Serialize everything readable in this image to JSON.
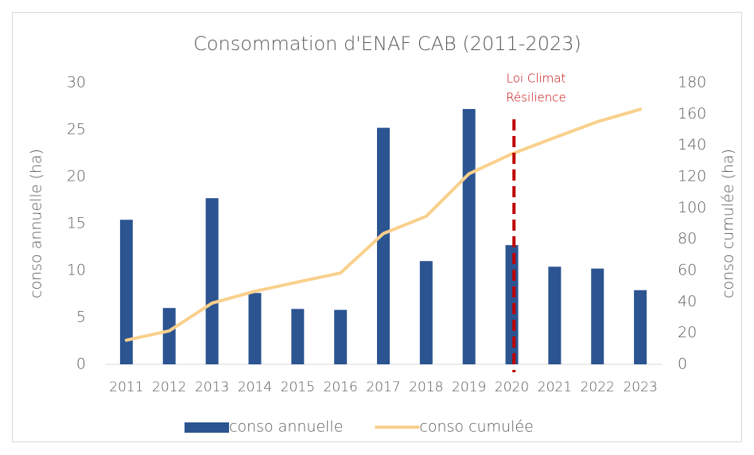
{
  "chart_data": {
    "type": "bar-line",
    "title": "Consommation d'ENAF CAB (2011-2023)",
    "categories": [
      "2011",
      "2012",
      "2013",
      "2014",
      "2015",
      "2016",
      "2017",
      "2018",
      "2019",
      "2020",
      "2021",
      "2022",
      "2023"
    ],
    "series": [
      {
        "name": "conso annuelle",
        "type": "bar",
        "color": "#2b5491",
        "values": [
          15.4,
          6.0,
          17.7,
          7.6,
          5.9,
          5.8,
          25.2,
          11.0,
          27.2,
          12.7,
          10.4,
          10.2,
          7.9
        ]
      },
      {
        "name": "conso cumulée",
        "type": "line",
        "axis": "y2",
        "color": "#f9d08c",
        "values": [
          15.4,
          21.4,
          39.1,
          46.7,
          52.6,
          58.4,
          83.6,
          94.6,
          121.8,
          134.5,
          144.9,
          155.1,
          163.0
        ]
      }
    ],
    "ylabel": "conso annuelle (ha)",
    "y2label": "conso cumulée (ha)",
    "ylim": [
      0,
      30
    ],
    "yticks": [
      0,
      5,
      10,
      15,
      20,
      25,
      30
    ],
    "y2lim": [
      0,
      180
    ],
    "y2ticks": [
      0,
      20,
      40,
      60,
      80,
      100,
      120,
      140,
      160,
      180
    ],
    "grid": false,
    "legend": "bottom",
    "annotations": [
      {
        "lines": [
          "Loi Climat",
          "Résilience"
        ],
        "color": "#c00000"
      }
    ]
  }
}
